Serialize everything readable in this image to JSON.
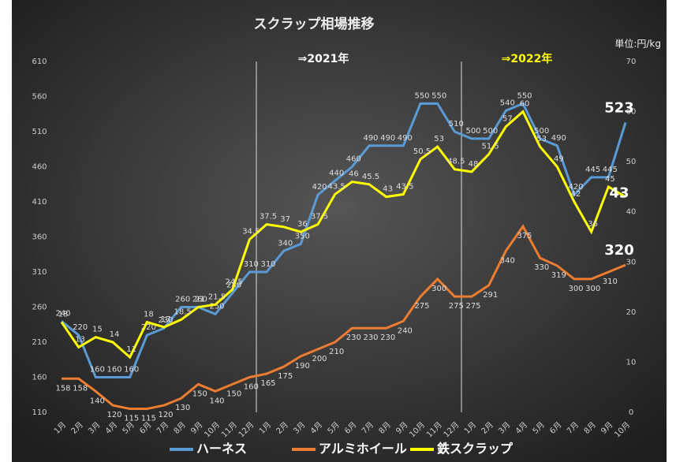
{
  "chart_data": {
    "type": "line",
    "title": "スクラップ相場推移",
    "unit": "単位:円/kg",
    "annotations": [
      "⇒2021年",
      "⇒2022年"
    ],
    "categories": [
      "1月",
      "2月",
      "3月",
      "4月",
      "5月",
      "6月",
      "7月",
      "8月",
      "9月",
      "10月",
      "11月",
      "12月",
      "1月",
      "2月",
      "3月",
      "4月",
      "5月",
      "6月",
      "7月",
      "8月",
      "9月",
      "10月",
      "11月",
      "12月",
      "1月",
      "2月",
      "3月",
      "4月",
      "5月",
      "6月",
      "7月",
      "8月",
      "9月",
      "10月"
    ],
    "series": [
      {
        "name": "ハーネス",
        "color": "#5b9bd5",
        "values": [
          240,
          220,
          160,
          160,
          160,
          220,
          230,
          260,
          260,
          250,
          280,
          310,
          310,
          340,
          350,
          420,
          440,
          460,
          490,
          490,
          490,
          550,
          550,
          510,
          500,
          500,
          540,
          550,
          500,
          490,
          420,
          445,
          445,
          523
        ]
      },
      {
        "name": "アルミホイール",
        "color": "#ed7d31",
        "values": [
          158,
          158,
          140,
          120,
          115,
          115,
          120,
          130,
          150,
          140,
          150,
          160,
          165,
          175,
          190,
          200,
          210,
          230,
          230,
          230,
          240,
          275,
          300,
          275,
          275,
          291,
          340,
          375,
          330,
          319,
          300,
          300,
          310,
          320
        ]
      },
      {
        "name": "鉄スクラップ",
        "color": "#ffff00",
        "axis": "y2",
        "values": [
          18,
          13,
          15,
          14,
          11,
          18,
          17,
          18.5,
          21,
          21.5,
          24.5,
          34.5,
          37.5,
          37,
          36,
          37.5,
          43.5,
          46,
          45.5,
          43,
          43.5,
          50.5,
          53,
          48.5,
          48,
          51.5,
          57,
          60,
          53,
          49,
          42,
          36,
          45,
          43
        ]
      }
    ],
    "ylim": [
      110,
      610
    ],
    "yticks": [
      110,
      160,
      210,
      260,
      310,
      360,
      410,
      460,
      510,
      560,
      610
    ],
    "y2lim": [
      0,
      70
    ],
    "y2ticks": [
      0,
      10,
      20,
      30,
      40,
      50,
      60,
      70
    ],
    "legend": "bottom"
  }
}
